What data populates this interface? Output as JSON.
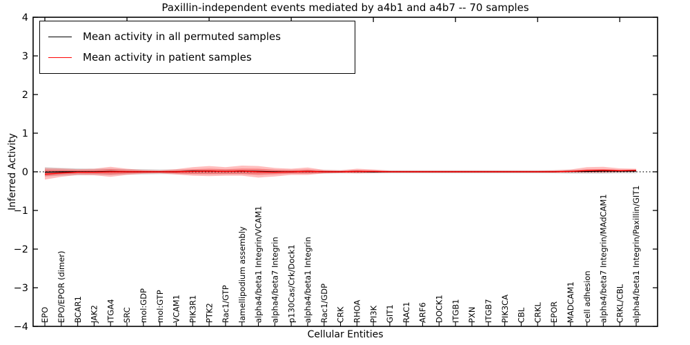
{
  "title": "Paxillin-independent events mediated by a4b1 and a4b7 -- 70 samples",
  "chart_data": {
    "type": "line",
    "title": "Paxillin-independent events mediated by a4b1 and a4b7 -- 70 samples",
    "xlabel": "Cellular Entities",
    "ylabel": "Inferred Activity",
    "ylim": [
      -4,
      4
    ],
    "yticks": [
      -4,
      -3,
      -2,
      -1,
      0,
      1,
      2,
      3,
      4
    ],
    "grid": false,
    "legend_position": "upper left",
    "zero_line": {
      "y": 0,
      "style": "dotted",
      "color": "#000000"
    },
    "categories": [
      "EPO",
      "EPO/EPOR (dimer)",
      "BCAR1",
      "JAK2",
      "ITGA4",
      "SRC",
      "mol:GDP",
      "mol:GTP",
      "VCAM1",
      "PIK3R1",
      "PTK2",
      "Rac1/GTP",
      "lamellipodium assembly",
      "alpha4/beta1 Integrin/VCAM1",
      "alpha4/beta7 Integrin",
      "p130Cas/Crk/Dock1",
      "alpha4/beta1 Integrin",
      "Rac1/GDP",
      "CRK",
      "RHOA",
      "PI3K",
      "GIT1",
      "RAC1",
      "ARF6",
      "DOCK1",
      "ITGB1",
      "PXN",
      "ITGB7",
      "PIK3CA",
      "CBL",
      "CRKL",
      "EPOR",
      "MADCAM1",
      "cell adhesion",
      "alpha4/beta7 Integrin/MAdCAM1",
      "CRKL/CBL",
      "alpha4/beta1 Integrin/Paxillin/GIT1"
    ],
    "series": [
      {
        "name": "Mean activity in all permuted samples",
        "color": "#000000",
        "values": [
          -0.01,
          0,
          0,
          0,
          0.01,
          0,
          0,
          0,
          0,
          0.02,
          0.02,
          0.01,
          0.02,
          0.01,
          0,
          0,
          0.01,
          0,
          0,
          0.01,
          0,
          0,
          0,
          0,
          0,
          0,
          0,
          0,
          0,
          0,
          0,
          0,
          0.01,
          0.01,
          0.02,
          0.02,
          0.02
        ]
      },
      {
        "name": "Mean activity in patient samples",
        "color": "#ff0000",
        "values": [
          -0.06,
          -0.03,
          -0.01,
          -0.01,
          0,
          0,
          0,
          0,
          0,
          0.01,
          0.02,
          0.01,
          0.02,
          0,
          -0.01,
          0,
          0.01,
          0,
          0,
          0.01,
          0.01,
          0,
          0,
          0,
          0,
          0,
          0,
          0,
          0,
          0,
          0,
          0,
          0.01,
          0.03,
          0.04,
          0.03,
          0.04
        ]
      }
    ],
    "bands": [
      {
        "name": "permuted-envelope",
        "fill": "rgba(0,0,0,0.14)",
        "upper": [
          0.12,
          0.1,
          0.09,
          0.08,
          0.08,
          0.07,
          0.07,
          0.06,
          0.06,
          0.06,
          0.06,
          0.06,
          0.06,
          0.06,
          0.05,
          0.05,
          0.05,
          0.05,
          0.04,
          0.04,
          0.04,
          0.04,
          0.04,
          0.04,
          0.04,
          0.04,
          0.04,
          0.04,
          0.04,
          0.04,
          0.04,
          0.04,
          0.05,
          0.05,
          0.05,
          0.04,
          0.04
        ],
        "lower": [
          -0.12,
          -0.1,
          -0.09,
          -0.08,
          -0.08,
          -0.07,
          -0.07,
          -0.06,
          -0.06,
          -0.06,
          -0.06,
          -0.06,
          -0.06,
          -0.06,
          -0.05,
          -0.05,
          -0.05,
          -0.05,
          -0.04,
          -0.04,
          -0.04,
          -0.04,
          -0.04,
          -0.04,
          -0.04,
          -0.04,
          -0.04,
          -0.04,
          -0.04,
          -0.04,
          -0.04,
          -0.04,
          -0.05,
          -0.05,
          -0.05,
          -0.04,
          -0.04
        ]
      },
      {
        "name": "patient-envelope-outer",
        "fill": "rgba(255,40,40,0.30)",
        "upper": [
          0.1,
          0.09,
          0.07,
          0.08,
          0.13,
          0.08,
          0.05,
          0.04,
          0.07,
          0.12,
          0.15,
          0.12,
          0.16,
          0.15,
          0.1,
          0.08,
          0.11,
          0.05,
          0.04,
          0.08,
          0.06,
          0.03,
          0.03,
          0.03,
          0.03,
          0.03,
          0.03,
          0.03,
          0.03,
          0.03,
          0.03,
          0.04,
          0.06,
          0.12,
          0.13,
          0.09,
          0.08
        ],
        "lower": [
          -0.2,
          -0.13,
          -0.08,
          -0.09,
          -0.13,
          -0.08,
          -0.05,
          -0.04,
          -0.07,
          -0.1,
          -0.11,
          -0.1,
          -0.1,
          -0.15,
          -0.12,
          -0.08,
          -0.08,
          -0.04,
          -0.03,
          -0.04,
          -0.03,
          -0.02,
          -0.02,
          -0.02,
          -0.02,
          -0.02,
          -0.02,
          -0.02,
          -0.02,
          -0.02,
          -0.02,
          -0.02,
          -0.02,
          -0.02,
          -0.02,
          -0.01,
          0.0
        ]
      },
      {
        "name": "patient-envelope-inner",
        "fill": "rgba(255,30,30,0.30)",
        "upper": [
          0.055,
          0.05,
          0.039,
          0.044,
          0.072,
          0.044,
          0.028,
          0.022,
          0.039,
          0.066,
          0.083,
          0.066,
          0.088,
          0.083,
          0.055,
          0.044,
          0.061,
          0.028,
          0.022,
          0.044,
          0.033,
          0.017,
          0.017,
          0.017,
          0.017,
          0.017,
          0.017,
          0.017,
          0.017,
          0.017,
          0.017,
          0.022,
          0.033,
          0.066,
          0.072,
          0.05,
          0.044
        ],
        "lower": [
          -0.11,
          -0.072,
          -0.044,
          -0.05,
          -0.072,
          -0.044,
          -0.028,
          -0.022,
          -0.039,
          -0.055,
          -0.061,
          -0.055,
          -0.055,
          -0.083,
          -0.066,
          -0.044,
          -0.044,
          -0.022,
          -0.017,
          -0.022,
          -0.017,
          -0.011,
          -0.011,
          -0.011,
          -0.011,
          -0.011,
          -0.011,
          -0.011,
          -0.011,
          -0.011,
          -0.011,
          -0.011,
          -0.011,
          -0.011,
          -0.011,
          -0.006,
          0.0
        ]
      }
    ]
  },
  "legend": {
    "entries": [
      {
        "label": "Mean activity in all permuted samples",
        "color": "#000000"
      },
      {
        "label": "Mean activity in patient samples",
        "color": "#ff0000"
      }
    ]
  },
  "colors": {
    "axis": "#000000",
    "background": "#ffffff",
    "patient": "#ff0000",
    "permuted": "#000000"
  }
}
